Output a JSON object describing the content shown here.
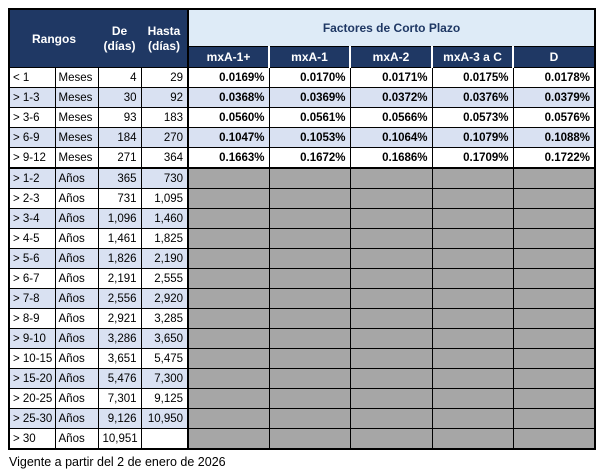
{
  "header": {
    "rangos": "Rangos",
    "de": "De\n(días)",
    "hasta": "Hasta\n(días)",
    "factores_title": "Factores de Corto Plazo",
    "ratings": [
      "mxA-1+",
      "mxA-1",
      "mxA-2",
      "mxA-3 a C",
      "D"
    ]
  },
  "rows": [
    {
      "range": "< 1",
      "unit": "Meses",
      "de": "4",
      "hasta": "29",
      "factors": [
        "0.0169%",
        "0.0170%",
        "0.0171%",
        "0.0175%",
        "0.0178%"
      ]
    },
    {
      "range": "> 1-3",
      "unit": "Meses",
      "de": "30",
      "hasta": "92",
      "factors": [
        "0.0368%",
        "0.0369%",
        "0.0372%",
        "0.0376%",
        "0.0379%"
      ]
    },
    {
      "range": "> 3-6",
      "unit": "Meses",
      "de": "93",
      "hasta": "183",
      "factors": [
        "0.0560%",
        "0.0561%",
        "0.0566%",
        "0.0573%",
        "0.0576%"
      ]
    },
    {
      "range": "> 6-9",
      "unit": "Meses",
      "de": "184",
      "hasta": "270",
      "factors": [
        "0.1047%",
        "0.1053%",
        "0.1064%",
        "0.1079%",
        "0.1088%"
      ]
    },
    {
      "range": "> 9-12",
      "unit": "Meses",
      "de": "271",
      "hasta": "364",
      "factors": [
        "0.1663%",
        "0.1672%",
        "0.1686%",
        "0.1709%",
        "0.1722%"
      ]
    },
    {
      "range": "> 1-2",
      "unit": "Años",
      "de": "365",
      "hasta": "730",
      "factors": null
    },
    {
      "range": "> 2-3",
      "unit": "Años",
      "de": "731",
      "hasta": "1,095",
      "factors": null
    },
    {
      "range": "> 3-4",
      "unit": "Años",
      "de": "1,096",
      "hasta": "1,460",
      "factors": null
    },
    {
      "range": "> 4-5",
      "unit": "Años",
      "de": "1,461",
      "hasta": "1,825",
      "factors": null
    },
    {
      "range": "> 5-6",
      "unit": "Años",
      "de": "1,826",
      "hasta": "2,190",
      "factors": null
    },
    {
      "range": "> 6-7",
      "unit": "Años",
      "de": "2,191",
      "hasta": "2,555",
      "factors": null
    },
    {
      "range": "> 7-8",
      "unit": "Años",
      "de": "2,556",
      "hasta": "2,920",
      "factors": null
    },
    {
      "range": "> 8-9",
      "unit": "Años",
      "de": "2,921",
      "hasta": "3,285",
      "factors": null
    },
    {
      "range": "> 9-10",
      "unit": "Años",
      "de": "3,286",
      "hasta": "3,650",
      "factors": null
    },
    {
      "range": "> 10-15",
      "unit": "Años",
      "de": "3,651",
      "hasta": "5,475",
      "factors": null
    },
    {
      "range": "> 15-20",
      "unit": "Años",
      "de": "5,476",
      "hasta": "7,300",
      "factors": null
    },
    {
      "range": "> 20-25",
      "unit": "Años",
      "de": "7,301",
      "hasta": "9,125",
      "factors": null
    },
    {
      "range": "> 25-30",
      "unit": "Años",
      "de": "9,126",
      "hasta": "10,950",
      "factors": null
    },
    {
      "range": "> 30",
      "unit": "Años",
      "de": "10,951",
      "hasta": "",
      "factors": null
    }
  ],
  "footer": "Vigente a partir del 2 de enero de 2026",
  "colors": {
    "header_navy": "#1F3864",
    "factores_band_blue": "#DEEBF7",
    "alt_row_lavender": "#D9E1F2",
    "empty_cell_gray": "#A6A6A6",
    "border_black": "#000000"
  }
}
